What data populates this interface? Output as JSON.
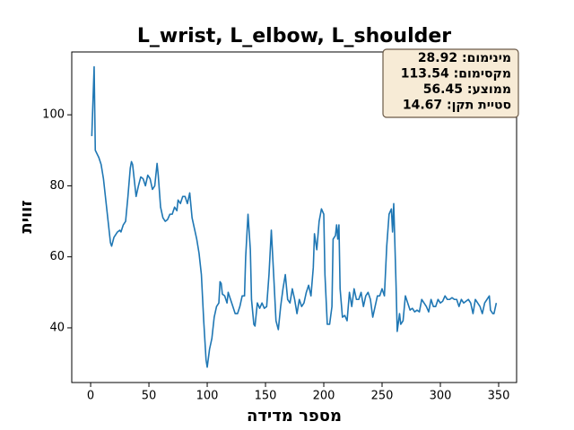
{
  "chart_data": {
    "type": "line",
    "title": "L_wrist, L_elbow, L_shoulder",
    "xlabel": "מספר מדידה",
    "ylabel": "זווית",
    "annotation": [
      "מינימום: 28.92",
      "מקסימום: 113.54",
      "ממוצע: 56.45",
      "סטיית תקן: 14.67"
    ],
    "x": [
      1,
      3,
      4,
      7,
      9,
      11,
      13,
      15,
      17,
      18,
      20,
      23,
      25,
      26,
      28,
      30,
      32,
      34,
      35,
      36,
      38,
      39,
      41,
      43,
      45,
      47,
      49,
      51,
      53,
      55,
      57,
      58,
      60,
      62,
      64,
      66,
      68,
      70,
      72,
      74,
      75,
      77,
      79,
      81,
      83,
      85,
      87,
      89,
      91,
      93,
      95,
      97,
      99,
      100,
      102,
      104,
      106,
      108,
      110,
      111,
      112,
      113,
      115,
      117,
      118,
      120,
      122,
      124,
      126,
      128,
      130,
      132,
      133,
      135,
      137,
      138,
      140,
      141,
      143,
      145,
      147,
      149,
      151,
      153,
      155,
      157,
      159,
      161,
      163,
      165,
      167,
      169,
      171,
      173,
      175,
      177,
      179,
      181,
      183,
      185,
      187,
      189,
      191,
      192,
      194,
      196,
      198,
      200,
      201,
      203,
      205,
      207,
      208,
      210,
      211,
      212,
      213,
      214,
      216,
      218,
      220,
      222,
      224,
      226,
      228,
      230,
      232,
      234,
      236,
      238,
      240,
      242,
      244,
      246,
      248,
      250,
      252,
      254,
      256,
      258,
      259,
      260,
      262,
      263,
      265,
      266,
      268,
      270,
      272,
      274,
      276,
      278,
      280,
      282,
      284,
      286,
      288,
      290,
      292,
      294,
      296,
      298,
      300,
      302,
      304,
      306,
      308,
      310,
      312,
      314,
      316,
      318,
      320,
      322,
      324,
      326,
      328,
      330,
      332,
      334,
      336,
      338,
      340,
      342,
      343,
      345,
      346,
      348
    ],
    "series": [
      {
        "color": "#1f77b4",
        "values": [
          94,
          113.54,
          90,
          88,
          86,
          82,
          76,
          70,
          64,
          63,
          65.5,
          67,
          67.5,
          67,
          69,
          70,
          77,
          85,
          86.8,
          86,
          80,
          77,
          80,
          82.5,
          82,
          80,
          83,
          82,
          79,
          80,
          86.3,
          83,
          74,
          71,
          70,
          70.5,
          72,
          72,
          74,
          73,
          76,
          75,
          77,
          77,
          75,
          78,
          71,
          68,
          65,
          61,
          55,
          42,
          31,
          28.92,
          34,
          37,
          43,
          46,
          47,
          53,
          52.5,
          49.5,
          49,
          47,
          50,
          48,
          46,
          44,
          44,
          46,
          49,
          49,
          60,
          72,
          62,
          48,
          41,
          40.5,
          47,
          45.5,
          47,
          45.5,
          46,
          55,
          67.5,
          55,
          42,
          39.5,
          46,
          51,
          55,
          48,
          47,
          51,
          48,
          44,
          48,
          46,
          47,
          50,
          52,
          49,
          57,
          66.5,
          62,
          70,
          73.5,
          72,
          55,
          41,
          41,
          46,
          65,
          66,
          69,
          65,
          69,
          51,
          43,
          43.5,
          42,
          50,
          46,
          51,
          48,
          48,
          50,
          46,
          49,
          50,
          48,
          43,
          46,
          49,
          49,
          51,
          49,
          63,
          72,
          73.5,
          67,
          75,
          52,
          39,
          44,
          41,
          42,
          49,
          47,
          45,
          45.5,
          44.5,
          45,
          44.5,
          48,
          47,
          46,
          44.5,
          48,
          46,
          46,
          48,
          47,
          47.5,
          49,
          48,
          48,
          48.5,
          48,
          48,
          46,
          48,
          47,
          47.5,
          48,
          47,
          44,
          48,
          47,
          46,
          44,
          47,
          48,
          49,
          45,
          44,
          44,
          47
        ]
      }
    ],
    "xlim": [
      -16.2,
      365.4
    ],
    "ylim": [
      24.6,
      117.7
    ],
    "xticks": [
      0,
      50,
      100,
      150,
      200,
      250,
      300,
      350
    ],
    "yticks": [
      40,
      60,
      80,
      100
    ],
    "grid": false
  }
}
